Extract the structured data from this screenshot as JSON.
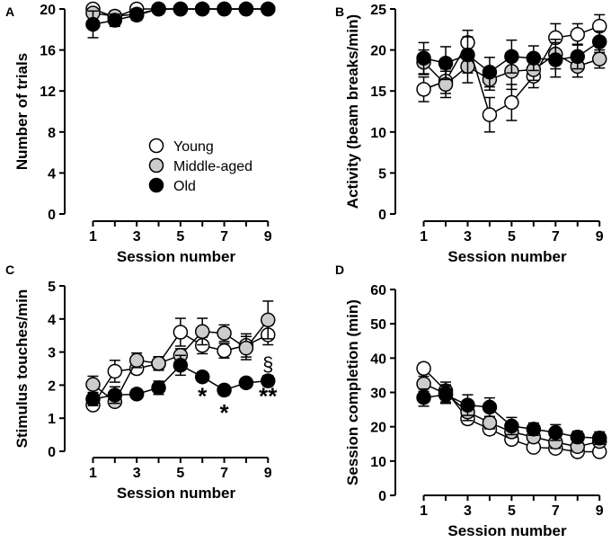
{
  "colors": {
    "young": "#ffffff",
    "middle": "#cccccc",
    "old": "#000000",
    "axis": "#000000"
  },
  "legend": {
    "panel": "A",
    "entries": [
      {
        "name": "Young",
        "color": "#ffffff"
      },
      {
        "name": "Middle-aged",
        "color": "#cccccc"
      },
      {
        "name": "Old",
        "color": "#000000"
      }
    ]
  },
  "chart_data": [
    {
      "panel": "A",
      "type": "line",
      "title": "",
      "xlabel": "Session number",
      "ylabel": "Number of trials",
      "xlim": [
        0.2,
        9.4
      ],
      "ylim": [
        0,
        20
      ],
      "xticks": [
        1,
        3,
        5,
        7,
        9
      ],
      "yticks": [
        0,
        4,
        8,
        12,
        16,
        20
      ],
      "x": [
        1,
        2,
        3,
        4,
        5,
        6,
        7,
        8,
        9
      ],
      "series": [
        {
          "name": "Young",
          "values": [
            20,
            19.2,
            20,
            20,
            20,
            20,
            20,
            20,
            20
          ],
          "errors": [
            0,
            0.4,
            0.2,
            0,
            0,
            0,
            0,
            0,
            0
          ]
        },
        {
          "name": "Middle-aged",
          "values": [
            19.6,
            19.3,
            19.5,
            20,
            20,
            20,
            20,
            20,
            20
          ],
          "errors": [
            0.4,
            0.5,
            0.5,
            0,
            0,
            0,
            0,
            0,
            0
          ]
        },
        {
          "name": "Old",
          "values": [
            18.5,
            18.9,
            19.4,
            20,
            20,
            20,
            20,
            20,
            20
          ],
          "errors": [
            1.3,
            0.6,
            0.5,
            0,
            0,
            0,
            0,
            0,
            0
          ]
        }
      ],
      "annotations": []
    },
    {
      "panel": "B",
      "type": "line",
      "title": "",
      "xlabel": "Session number",
      "ylabel": "Activity (beam breaks/min)",
      "xlim": [
        0.2,
        9.4
      ],
      "ylim": [
        0,
        25
      ],
      "xticks": [
        1,
        3,
        5,
        7,
        9
      ],
      "yticks": [
        0,
        5,
        10,
        15,
        20,
        25
      ],
      "x": [
        1,
        2,
        3,
        4,
        5,
        6,
        7,
        8,
        9
      ],
      "series": [
        {
          "name": "Young",
          "values": [
            15.2,
            16.2,
            20.9,
            12.1,
            13.6,
            16.8,
            21.5,
            21.9,
            22.9
          ],
          "errors": [
            1.5,
            1.5,
            1.5,
            2.1,
            2.2,
            1.4,
            1.7,
            1.3,
            1.4
          ]
        },
        {
          "name": "Middle-aged",
          "values": [
            18.5,
            15.8,
            18.0,
            16.4,
            17.4,
            17.6,
            19.5,
            18.0,
            18.9
          ],
          "errors": [
            1.5,
            1.6,
            2.0,
            1.3,
            2.2,
            1.3,
            1.8,
            1.3,
            1.1
          ]
        },
        {
          "name": "Old",
          "values": [
            19.0,
            18.4,
            19.4,
            17.3,
            19.2,
            19.0,
            18.8,
            19.2,
            21.0
          ],
          "errors": [
            1.9,
            2.0,
            2.2,
            1.8,
            2.0,
            1.5,
            2.1,
            1.5,
            1.3
          ]
        }
      ],
      "annotations": []
    },
    {
      "panel": "C",
      "type": "line",
      "title": "",
      "xlabel": "Session number",
      "ylabel": "Stimulus touches/min",
      "xlim": [
        0.2,
        9.4
      ],
      "ylim": [
        0,
        5
      ],
      "xticks": [
        1,
        3,
        5,
        7,
        9
      ],
      "yticks": [
        0,
        1,
        2,
        3,
        4,
        5
      ],
      "x": [
        1,
        2,
        3,
        4,
        5,
        6,
        7,
        8,
        9
      ],
      "series": [
        {
          "name": "Young",
          "values": [
            1.4,
            2.42,
            2.5,
            2.65,
            3.6,
            3.2,
            3.04,
            3.2,
            3.52
          ],
          "errors": [
            0.1,
            0.33,
            0.15,
            0.2,
            0.42,
            0.25,
            0.22,
            0.35,
            0.3
          ]
        },
        {
          "name": "Middle-aged",
          "values": [
            2.02,
            1.5,
            2.75,
            2.66,
            2.9,
            3.62,
            3.57,
            3.12,
            3.97
          ],
          "errors": [
            0.25,
            0.12,
            0.22,
            0.2,
            0.2,
            0.4,
            0.25,
            0.35,
            0.57
          ]
        },
        {
          "name": "Old",
          "values": [
            1.58,
            1.7,
            1.73,
            1.92,
            2.6,
            2.25,
            1.85,
            2.07,
            2.13
          ],
          "errors": [
            0.2,
            0.25,
            0.14,
            0.2,
            0.3,
            0.14,
            0.15,
            0.13,
            0.16
          ]
        }
      ],
      "annotations": [
        {
          "x": 6,
          "y": 1.7,
          "text": "*",
          "style": "sig-mark"
        },
        {
          "x": 7,
          "y": 1.2,
          "text": "*",
          "style": "sig-mark"
        },
        {
          "x": 9,
          "y": 1.7,
          "text": "**",
          "style": "sig-mark"
        },
        {
          "x": 9,
          "y": 2.7,
          "text": "§",
          "style": "sig-section"
        }
      ]
    },
    {
      "panel": "D",
      "type": "line",
      "title": "",
      "xlabel": "Session number",
      "ylabel": "Session completion (min)",
      "xlim": [
        0.2,
        9.4
      ],
      "ylim": [
        0,
        60
      ],
      "xticks": [
        1,
        3,
        5,
        7,
        9
      ],
      "yticks": [
        0,
        10,
        20,
        30,
        40,
        50,
        60
      ],
      "x": [
        1,
        2,
        3,
        4,
        5,
        6,
        7,
        8,
        9
      ],
      "series": [
        {
          "name": "Young",
          "values": [
            37,
            30.5,
            22.3,
            19.3,
            16.3,
            14,
            13.7,
            12.7,
            12.7
          ],
          "errors": [
            1.5,
            2.5,
            1.5,
            1.5,
            1.3,
            1.0,
            1.0,
            0.8,
            0.8
          ]
        },
        {
          "name": "Middle-aged",
          "values": [
            32.5,
            29.7,
            24.3,
            21.2,
            18.5,
            17,
            15.5,
            14.2,
            15.7
          ],
          "errors": [
            2.2,
            2.5,
            2.5,
            1.8,
            1.6,
            1.5,
            1.8,
            1.5,
            1.2
          ]
        },
        {
          "name": "Old",
          "values": [
            28.5,
            29.3,
            26.3,
            25.7,
            20.2,
            19.3,
            18.3,
            17,
            16.7
          ],
          "errors": [
            2.5,
            2.5,
            3.0,
            2.7,
            2.5,
            1.8,
            2.3,
            1.7,
            1.8
          ]
        }
      ],
      "annotations": []
    }
  ]
}
